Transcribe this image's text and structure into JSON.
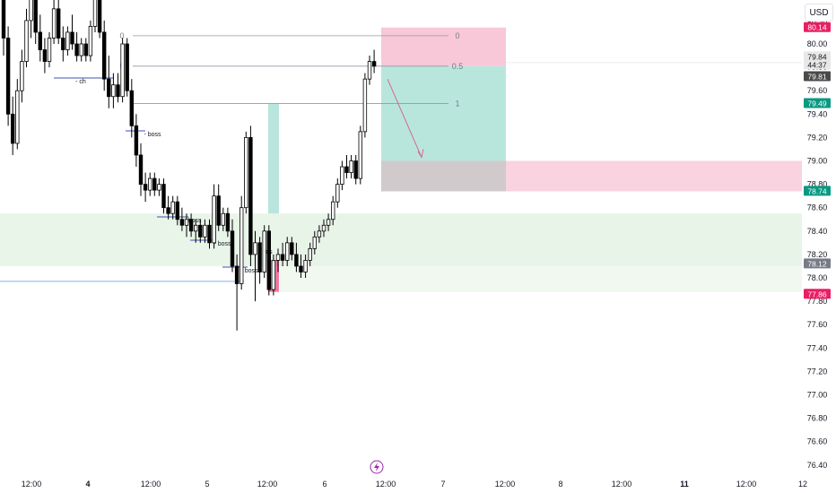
{
  "currency_button": "USD",
  "bolt_icon": "lightning-icon",
  "colors": {
    "up": "#ffffff",
    "down": "#000000",
    "wick": "#000000",
    "tp_zone": "#b9e6dc",
    "sl_zone": "#f8c8d8",
    "demand_zone": "#e6f4e6",
    "axis_text": "#131722",
    "grid_line": "#9598a1",
    "tag_red": "#e91e63",
    "tag_green": "#089981",
    "tag_dark": "#4a4a4a",
    "tag_gray": "#787b86"
  },
  "chart_data": {
    "type": "candlestick",
    "y_axis": {
      "ticks": [
        "80.00",
        "79.80",
        "79.60",
        "79.40",
        "79.20",
        "79.00",
        "78.80",
        "78.60",
        "78.40",
        "78.20",
        "78.00",
        "77.80",
        "77.60",
        "77.40",
        "77.20",
        "77.00",
        "76.80",
        "76.60",
        "76.40"
      ],
      "top_partial": "80.20"
    },
    "x_axis_ticks": [
      {
        "label": "12:00",
        "bold": false
      },
      {
        "label": "4",
        "bold": true
      },
      {
        "label": "12:00",
        "bold": false
      },
      {
        "label": "5",
        "bold": false
      },
      {
        "label": "12:00",
        "bold": false
      },
      {
        "label": "6",
        "bold": false
      },
      {
        "label": "12:00",
        "bold": false
      },
      {
        "label": "7",
        "bold": false
      },
      {
        "label": "12:00",
        "bold": false
      },
      {
        "label": "8",
        "bold": false
      },
      {
        "label": "12:00",
        "bold": false
      },
      {
        "label": "11",
        "bold": true
      },
      {
        "label": "12:00",
        "bold": false
      },
      {
        "label": "12",
        "bold": false
      }
    ],
    "price_tags": [
      {
        "text": "80.14",
        "style": "red"
      },
      {
        "text": "79.84",
        "style": "dark_top"
      },
      {
        "text": "44:37",
        "style": "dark_bottom"
      },
      {
        "text": "79.81",
        "style": "dark"
      },
      {
        "text": "79.49",
        "style": "green"
      },
      {
        "text": "78.74",
        "style": "green"
      },
      {
        "text": "78.12",
        "style": "gray"
      },
      {
        "text": "77.86",
        "style": "red"
      }
    ],
    "fib_labels": [
      "0",
      "0.5",
      "1"
    ],
    "left_fib_labels": [
      "0",
      "5"
    ],
    "structure_labels": [
      "- ch",
      "- boss",
      "- boss",
      "- boss",
      "- boss",
      "bos"
    ],
    "candles": [
      [
        80.45,
        80.6,
        79.9,
        80.05
      ],
      [
        80.05,
        80.15,
        79.3,
        79.4
      ],
      [
        79.4,
        79.55,
        79.05,
        79.15
      ],
      [
        79.15,
        79.7,
        79.1,
        79.6
      ],
      [
        79.6,
        79.95,
        79.5,
        79.85
      ],
      [
        79.85,
        80.3,
        79.8,
        80.2
      ],
      [
        80.2,
        80.55,
        80.05,
        80.4
      ],
      [
        80.4,
        80.6,
        80.0,
        80.1
      ],
      [
        80.1,
        80.25,
        79.85,
        79.95
      ],
      [
        79.95,
        80.05,
        79.75,
        79.85
      ],
      [
        79.85,
        80.1,
        79.8,
        80.05
      ],
      [
        80.05,
        80.45,
        80.0,
        80.3
      ],
      [
        80.3,
        80.4,
        80.0,
        80.05
      ],
      [
        80.05,
        80.15,
        79.85,
        79.95
      ],
      [
        79.95,
        80.15,
        79.9,
        80.1
      ],
      [
        80.1,
        80.25,
        79.95,
        80.0
      ],
      [
        80.0,
        80.1,
        79.85,
        79.9
      ],
      [
        79.9,
        80.05,
        79.85,
        80.0
      ],
      [
        80.0,
        80.05,
        79.85,
        79.9
      ],
      [
        79.9,
        80.2,
        79.85,
        80.15
      ],
      [
        80.15,
        80.5,
        80.1,
        80.45
      ],
      [
        80.45,
        80.55,
        80.05,
        80.1
      ],
      [
        80.1,
        80.2,
        79.6,
        79.7
      ],
      [
        79.7,
        79.9,
        79.45,
        79.55
      ],
      [
        79.55,
        79.75,
        79.45,
        79.65
      ],
      [
        79.65,
        79.75,
        79.5,
        79.55
      ],
      [
        79.55,
        80.05,
        79.5,
        80.0
      ],
      [
        80.0,
        80.05,
        79.55,
        79.6
      ],
      [
        79.6,
        79.7,
        79.2,
        79.3
      ],
      [
        79.3,
        79.4,
        78.95,
        79.05
      ],
      [
        79.05,
        79.15,
        78.7,
        78.8
      ],
      [
        78.8,
        78.9,
        78.65,
        78.75
      ],
      [
        78.75,
        78.9,
        78.7,
        78.85
      ],
      [
        78.85,
        78.9,
        78.7,
        78.75
      ],
      [
        78.75,
        78.85,
        78.7,
        78.8
      ],
      [
        78.8,
        78.85,
        78.55,
        78.6
      ],
      [
        78.6,
        78.7,
        78.5,
        78.55
      ],
      [
        78.55,
        78.7,
        78.5,
        78.65
      ],
      [
        78.65,
        78.7,
        78.45,
        78.5
      ],
      [
        78.5,
        78.6,
        78.4,
        78.45
      ],
      [
        78.45,
        78.55,
        78.35,
        78.5
      ],
      [
        78.5,
        78.55,
        78.35,
        78.4
      ],
      [
        78.4,
        78.5,
        78.3,
        78.45
      ],
      [
        78.45,
        78.5,
        78.3,
        78.35
      ],
      [
        78.35,
        78.5,
        78.3,
        78.45
      ],
      [
        78.45,
        78.5,
        78.25,
        78.3
      ],
      [
        78.3,
        78.8,
        78.25,
        78.7
      ],
      [
        78.7,
        78.8,
        78.4,
        78.45
      ],
      [
        78.45,
        78.6,
        78.4,
        78.55
      ],
      [
        78.55,
        78.6,
        78.35,
        78.4
      ],
      [
        78.4,
        78.5,
        78.05,
        78.1
      ],
      [
        78.1,
        78.2,
        77.55,
        77.95
      ],
      [
        77.95,
        78.7,
        77.9,
        78.6
      ],
      [
        78.6,
        79.25,
        78.55,
        79.2
      ],
      [
        79.2,
        79.3,
        78.1,
        78.2
      ],
      [
        78.2,
        78.4,
        77.8,
        78.3
      ],
      [
        78.3,
        78.35,
        77.95,
        78.05
      ],
      [
        78.05,
        78.45,
        78.0,
        78.4
      ],
      [
        78.4,
        78.45,
        77.85,
        77.9
      ],
      [
        77.9,
        78.2,
        77.85,
        78.15
      ],
      [
        78.15,
        78.25,
        78.05,
        78.2
      ],
      [
        78.2,
        78.3,
        78.1,
        78.15
      ],
      [
        78.15,
        78.35,
        78.1,
        78.3
      ],
      [
        78.3,
        78.35,
        78.15,
        78.2
      ],
      [
        78.2,
        78.3,
        78.05,
        78.1
      ],
      [
        78.1,
        78.2,
        78.0,
        78.05
      ],
      [
        78.05,
        78.2,
        78.0,
        78.15
      ],
      [
        78.15,
        78.3,
        78.1,
        78.25
      ],
      [
        78.25,
        78.4,
        78.2,
        78.35
      ],
      [
        78.35,
        78.45,
        78.3,
        78.4
      ],
      [
        78.4,
        78.5,
        78.35,
        78.45
      ],
      [
        78.45,
        78.55,
        78.4,
        78.5
      ],
      [
        78.5,
        78.7,
        78.45,
        78.65
      ],
      [
        78.65,
        78.85,
        78.6,
        78.8
      ],
      [
        78.8,
        79.0,
        78.75,
        78.95
      ],
      [
        78.95,
        79.05,
        78.85,
        78.9
      ],
      [
        78.9,
        79.05,
        78.85,
        79.0
      ],
      [
        79.0,
        79.05,
        78.8,
        78.85
      ],
      [
        78.85,
        79.3,
        78.8,
        79.25
      ],
      [
        79.25,
        79.75,
        79.2,
        79.7
      ],
      [
        79.7,
        79.9,
        79.65,
        79.85
      ],
      [
        79.85,
        79.95,
        79.75,
        79.81
      ]
    ]
  }
}
